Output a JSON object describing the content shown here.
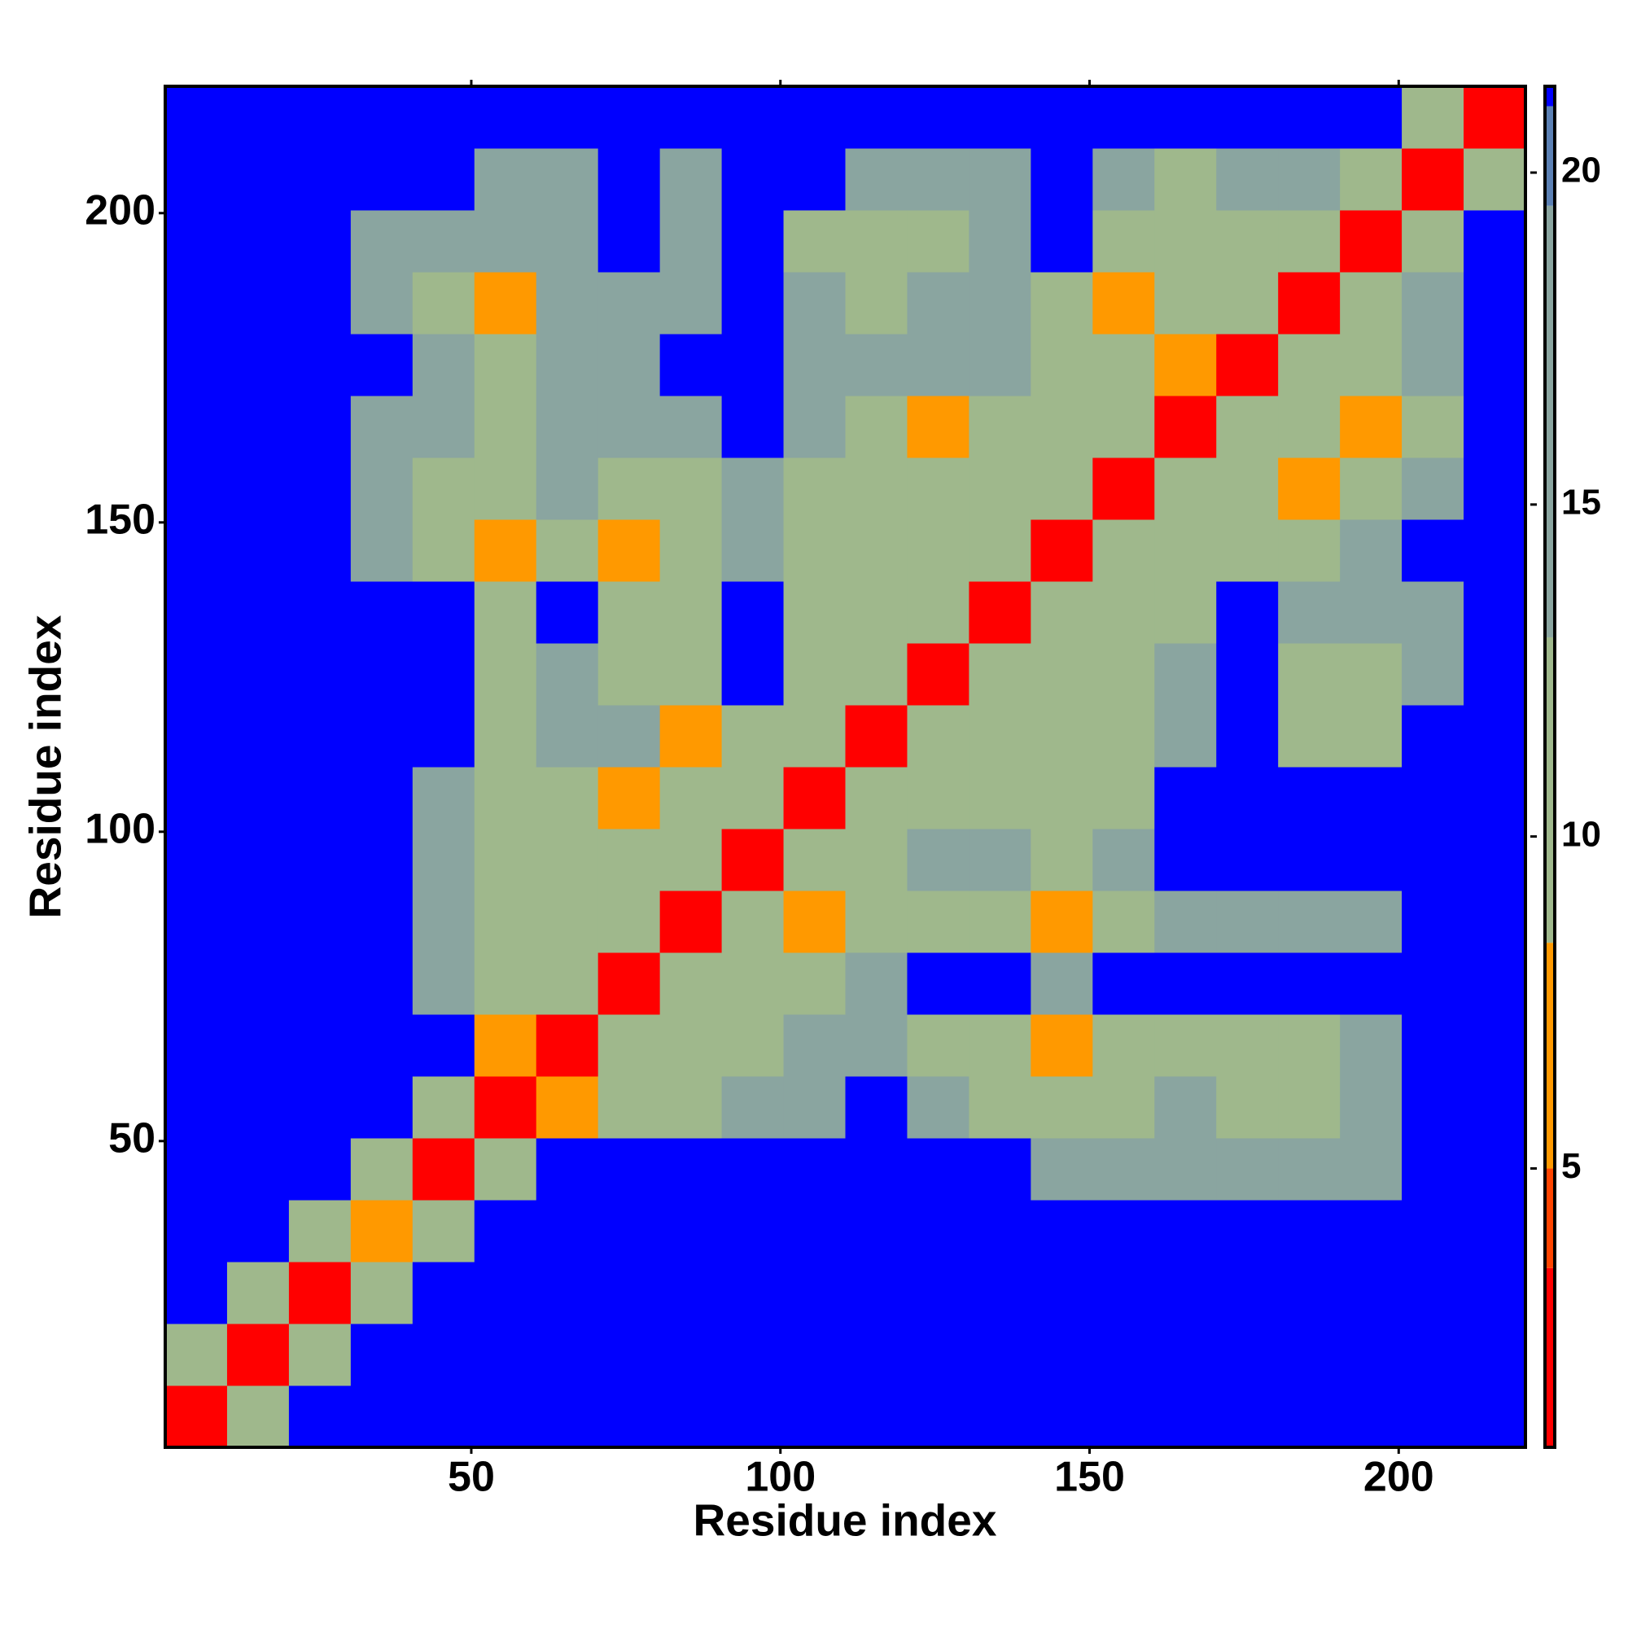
{
  "chart_data": {
    "type": "heatmap",
    "xlabel": "Residue index",
    "ylabel": "Residue index",
    "x": [
      5.5,
      15.5,
      25.5,
      35.5,
      45.5,
      55.5,
      65.5,
      75.5,
      85.5,
      95.5,
      105.5,
      115.5,
      125.5,
      135.5,
      145.5,
      155.5,
      165.5,
      175.5,
      185.5,
      195.5,
      205.5,
      215.5
    ],
    "y": [
      5.5,
      15.5,
      25.5,
      35.5,
      45.5,
      55.5,
      65.5,
      75.5,
      85.5,
      95.5,
      105.5,
      115.5,
      125.5,
      135.5,
      145.5,
      155.5,
      165.5,
      175.5,
      185.5,
      195.5,
      205.5,
      215.5
    ],
    "z": [
      [
        2,
        11,
        21,
        21,
        21,
        21,
        21,
        21,
        21,
        21,
        21,
        21,
        21,
        21,
        21,
        21,
        21,
        21,
        21,
        21,
        21,
        21
      ],
      [
        11,
        2,
        11,
        21,
        21,
        21,
        21,
        21,
        21,
        21,
        21,
        21,
        21,
        21,
        21,
        21,
        21,
        21,
        21,
        21,
        21,
        21
      ],
      [
        21,
        11,
        2,
        11,
        21,
        21,
        21,
        21,
        21,
        21,
        21,
        21,
        21,
        21,
        21,
        21,
        21,
        21,
        21,
        21,
        21,
        21
      ],
      [
        21,
        21,
        11,
        6,
        11,
        21,
        21,
        21,
        21,
        21,
        21,
        21,
        21,
        21,
        21,
        21,
        21,
        21,
        21,
        21,
        21,
        21
      ],
      [
        21,
        21,
        21,
        11,
        2,
        11,
        21,
        21,
        21,
        21,
        21,
        21,
        21,
        21,
        16,
        16,
        16,
        16,
        16,
        16,
        21,
        21
      ],
      [
        21,
        21,
        21,
        21,
        11,
        2,
        6,
        11,
        11,
        16,
        16,
        21,
        16,
        11,
        11,
        11,
        16,
        11,
        11,
        16,
        21,
        21
      ],
      [
        21,
        21,
        21,
        21,
        21,
        6,
        2,
        11,
        11,
        11,
        16,
        16,
        11,
        11,
        6,
        11,
        11,
        11,
        11,
        16,
        21,
        21
      ],
      [
        21,
        21,
        21,
        21,
        16,
        11,
        11,
        2,
        11,
        11,
        11,
        16,
        21,
        21,
        16,
        21,
        21,
        21,
        21,
        21,
        21,
        21
      ],
      [
        21,
        21,
        21,
        21,
        16,
        11,
        11,
        11,
        2,
        11,
        6,
        11,
        11,
        11,
        6,
        11,
        16,
        16,
        16,
        16,
        21,
        21
      ],
      [
        21,
        21,
        21,
        21,
        16,
        11,
        11,
        11,
        11,
        2,
        11,
        11,
        16,
        16,
        11,
        16,
        21,
        21,
        21,
        21,
        21,
        21
      ],
      [
        21,
        21,
        21,
        21,
        16,
        11,
        11,
        6,
        11,
        11,
        2,
        11,
        11,
        11,
        11,
        11,
        21,
        21,
        21,
        21,
        21,
        21
      ],
      [
        21,
        21,
        21,
        21,
        21,
        11,
        16,
        16,
        6,
        11,
        11,
        2,
        11,
        11,
        11,
        11,
        16,
        21,
        11,
        11,
        21,
        21
      ],
      [
        21,
        21,
        21,
        21,
        21,
        11,
        16,
        11,
        11,
        21,
        11,
        11,
        2,
        11,
        11,
        11,
        16,
        21,
        11,
        11,
        16,
        21
      ],
      [
        21,
        21,
        21,
        21,
        21,
        11,
        21,
        11,
        11,
        21,
        11,
        11,
        11,
        2,
        11,
        11,
        11,
        21,
        16,
        16,
        16,
        21
      ],
      [
        21,
        21,
        21,
        16,
        11,
        6,
        11,
        6,
        11,
        16,
        11,
        11,
        11,
        11,
        2,
        11,
        11,
        11,
        11,
        16,
        21,
        21
      ],
      [
        21,
        21,
        21,
        16,
        11,
        11,
        16,
        11,
        11,
        16,
        11,
        11,
        11,
        11,
        11,
        2,
        11,
        11,
        6,
        11,
        16,
        21
      ],
      [
        21,
        21,
        21,
        16,
        16,
        11,
        16,
        16,
        16,
        21,
        16,
        11,
        6,
        11,
        11,
        11,
        2,
        11,
        11,
        6,
        11,
        21
      ],
      [
        21,
        21,
        21,
        21,
        16,
        11,
        16,
        16,
        21,
        21,
        16,
        16,
        16,
        16,
        11,
        11,
        6,
        2,
        11,
        11,
        16,
        21
      ],
      [
        21,
        21,
        21,
        16,
        11,
        6,
        16,
        16,
        16,
        21,
        16,
        11,
        16,
        16,
        11,
        6,
        11,
        11,
        2,
        11,
        16,
        21
      ],
      [
        21,
        21,
        21,
        16,
        16,
        16,
        16,
        21,
        16,
        21,
        11,
        11,
        11,
        16,
        21,
        11,
        11,
        11,
        11,
        2,
        11,
        21
      ],
      [
        21,
        21,
        21,
        21,
        21,
        16,
        16,
        21,
        16,
        21,
        21,
        16,
        16,
        16,
        21,
        16,
        11,
        16,
        16,
        11,
        2,
        11
      ],
      [
        21,
        21,
        21,
        21,
        21,
        21,
        21,
        21,
        21,
        21,
        21,
        21,
        21,
        21,
        21,
        21,
        21,
        21,
        21,
        21,
        11,
        2
      ]
    ],
    "xlim": [
      0.5,
      220.5
    ],
    "ylim": [
      0.5,
      220.5
    ],
    "xticks": [
      50,
      100,
      150,
      200
    ],
    "yticks": [
      50,
      100,
      150,
      200
    ],
    "colorbar_bounds": [
      0.8,
      3.5,
      5,
      8.4,
      13,
      19.5,
      21,
      21.3
    ],
    "colors": [
      "#ff0000",
      "#ff4400",
      "#ff9900",
      "#9fb88c",
      "#8aa5a0",
      "#5b80b4",
      "#0000ff"
    ],
    "colorbar_ticks": [
      5,
      10,
      15,
      20
    ]
  }
}
